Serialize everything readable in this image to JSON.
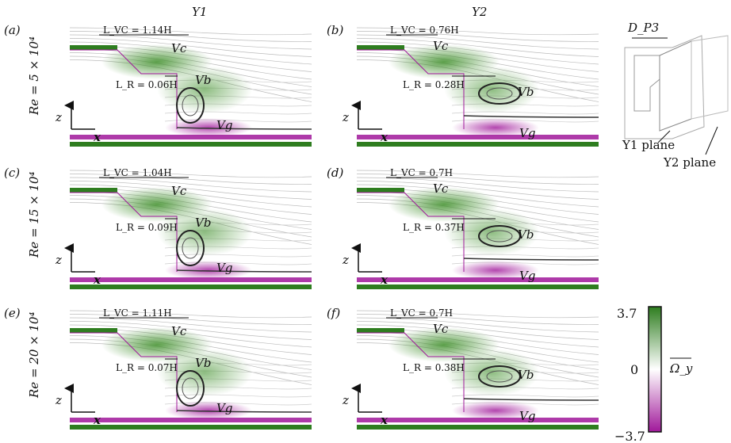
{
  "columns": [
    "Y1",
    "Y2"
  ],
  "rows": [
    {
      "re_label": "Re = 5 × 10⁴",
      "panels": [
        {
          "tag": "(a)",
          "lvc": "L_VC = 1.14H",
          "lr": "L_R = 0.06H"
        },
        {
          "tag": "(b)",
          "lvc": "L_VC = 0.76H",
          "lr": "L_R = 0.28H"
        }
      ]
    },
    {
      "re_label": "Re = 15 × 10⁴",
      "panels": [
        {
          "tag": "(c)",
          "lvc": "L_VC = 1.04H",
          "lr": "L_R = 0.09H"
        },
        {
          "tag": "(d)",
          "lvc": "L_VC = 0.7H",
          "lr": "L_R = 0.37H"
        }
      ]
    },
    {
      "re_label": "Re = 20 × 10⁴",
      "panels": [
        {
          "tag": "(e)",
          "lvc": "L_VC = 1.11H",
          "lr": "L_R = 0.07H"
        },
        {
          "tag": "(f)",
          "lvc": "L_VC = 0.7H",
          "lr": "L_R = 0.38H"
        }
      ]
    }
  ],
  "vortex_labels": {
    "vc": "Vc",
    "vb": "Vb",
    "vg": "Vg"
  },
  "axis_labels": {
    "x": "x",
    "z": "z"
  },
  "schematic": {
    "dim": "D_P3",
    "plane1": "Y1 plane",
    "plane2": "Y2 plane"
  },
  "colorbar": {
    "max": "3.7",
    "mid": "0",
    "min": "−3.7",
    "label": "Ω_y",
    "colors": {
      "pos": "#2e7d1f",
      "neg": "#a0189a"
    }
  }
}
